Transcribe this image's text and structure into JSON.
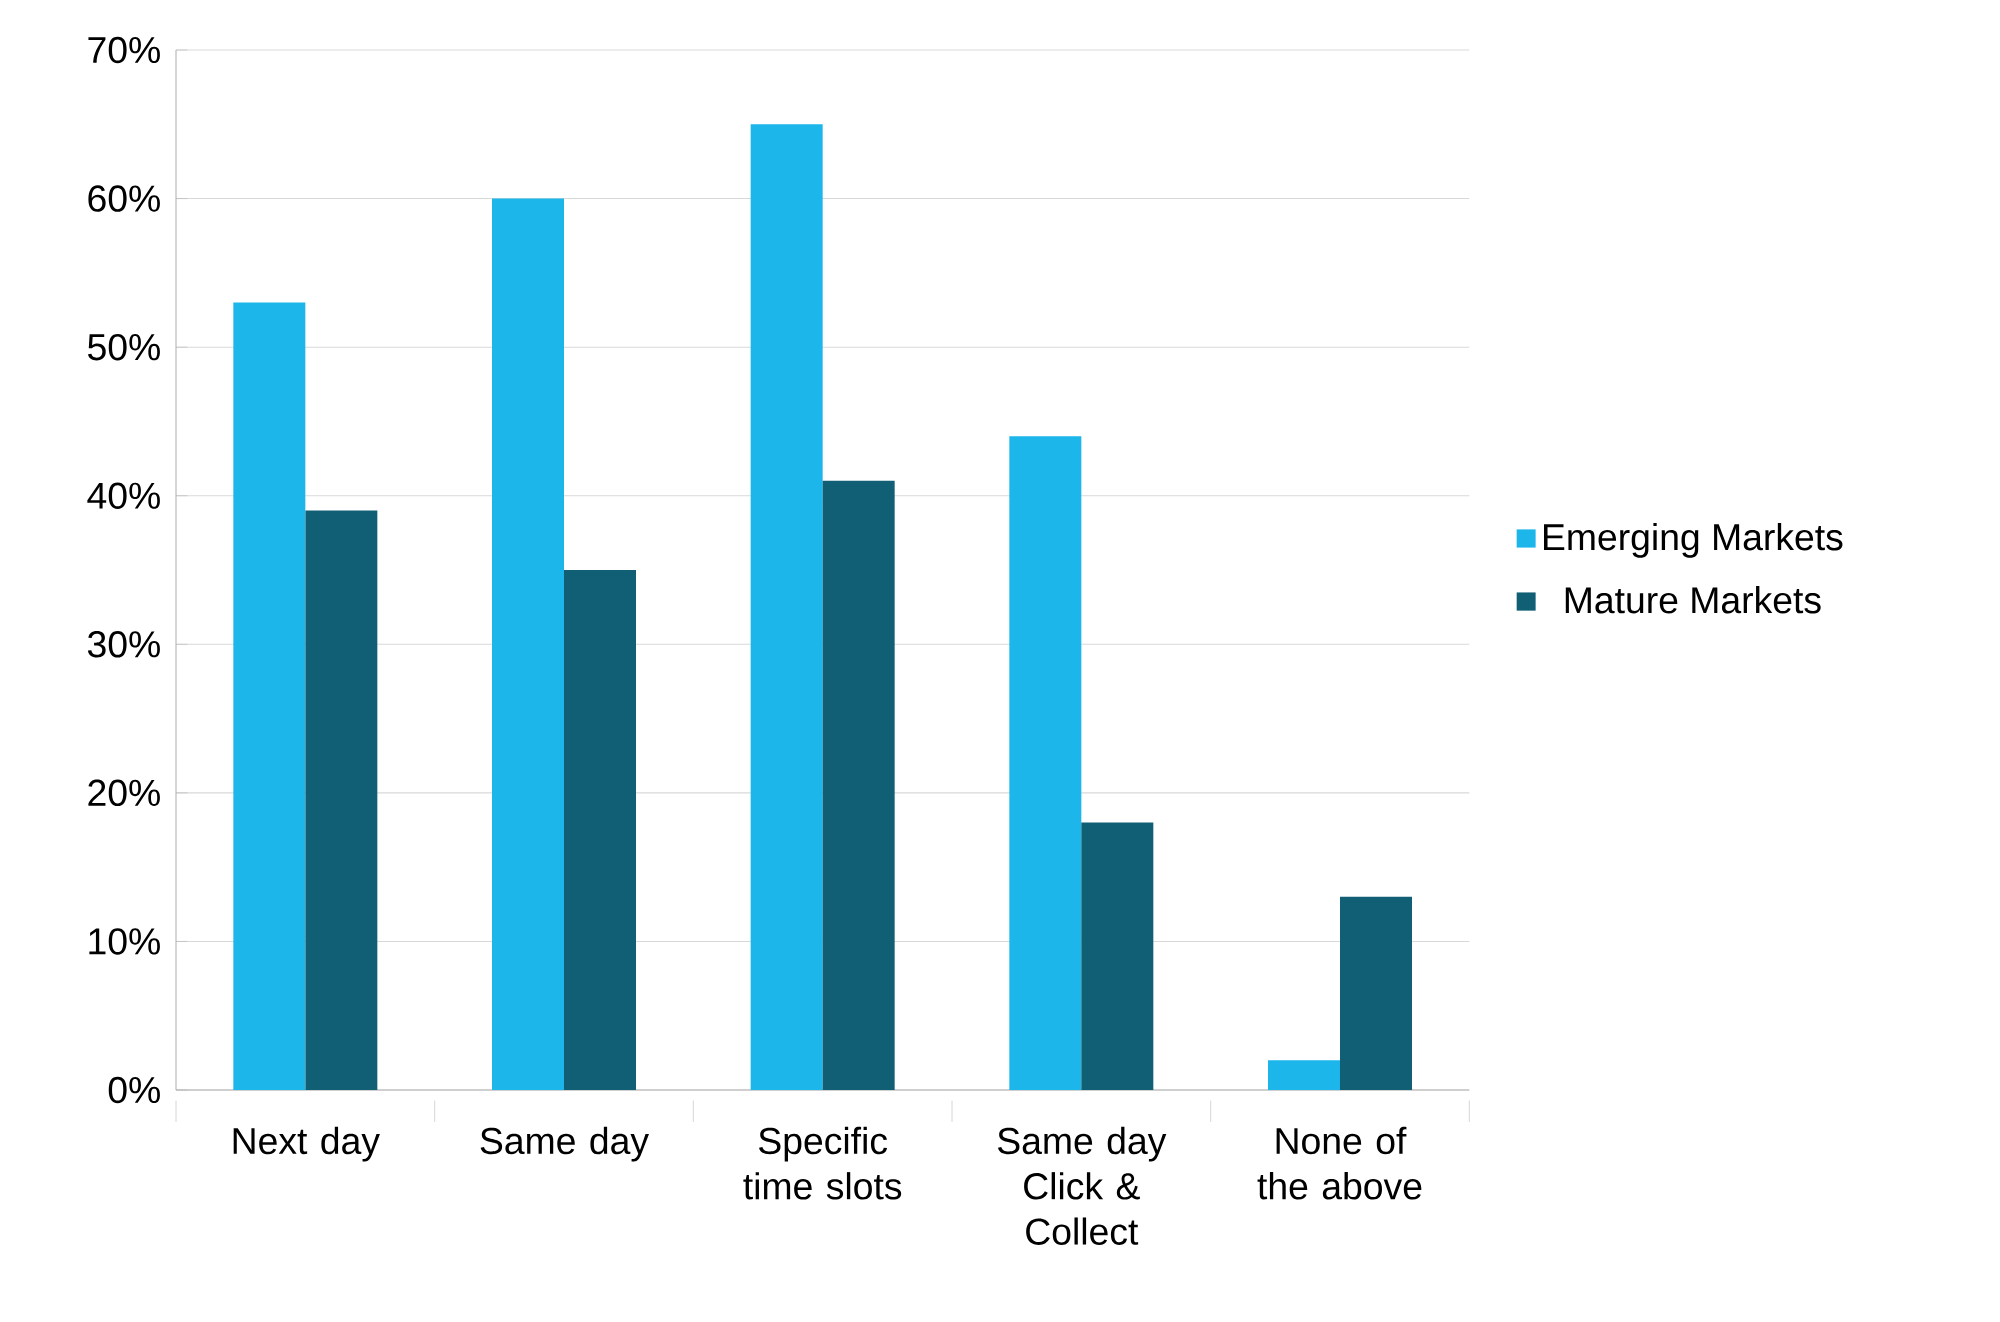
{
  "chart_data": {
    "type": "bar",
    "categories": [
      "Next day",
      "Same day",
      "Specific time slots",
      "Same day Click & Collect",
      "None of the above"
    ],
    "series": [
      {
        "name": "Emerging Markets",
        "color": "#1cb6ea",
        "values": [
          53,
          60,
          65,
          44,
          2
        ]
      },
      {
        "name": "Mature Markets",
        "color": "#105f74",
        "values": [
          39,
          35,
          41,
          18,
          13
        ]
      }
    ],
    "ylim": [
      0,
      70
    ],
    "yticks": [
      {
        "value": 0,
        "label": "0%"
      },
      {
        "value": 10,
        "label": "10%"
      },
      {
        "value": 20,
        "label": "20%"
      },
      {
        "value": 30,
        "label": "30%"
      },
      {
        "value": 40,
        "label": "40%"
      },
      {
        "value": 50,
        "label": "50%"
      },
      {
        "value": 60,
        "label": "60%"
      },
      {
        "value": 70,
        "label": "70%"
      }
    ],
    "grid": "y",
    "legend": "right"
  }
}
